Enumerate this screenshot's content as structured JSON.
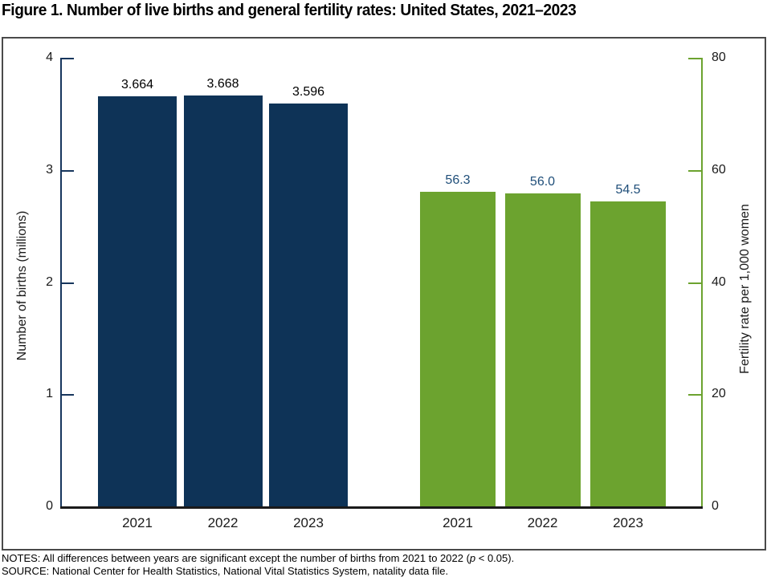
{
  "title": "Figure 1. Number of live births and general fertility rates: United States, 2021–2023",
  "notes": {
    "line1_prefix": "NOTES: All differences between years are significant except the number of births from 2021 to 2022 (",
    "line1_italic": "p",
    "line1_suffix": " < 0.05).",
    "line2": "SOURCE: National Center for Health Statistics, National Vital Statistics System, natality data file."
  },
  "colors": {
    "births_bar": "#0e3357",
    "births_axis": "#17365d",
    "births_value_label": "#000000",
    "fertility_bar": "#6ca32f",
    "fertility_axis": "#6ca32f",
    "fertility_value_label": "#1f4e79",
    "x_axis_line": "#1a1a1a",
    "tick_label": "#1a1a1a"
  },
  "chart_data": {
    "type": "bar",
    "title": "Figure 1. Number of live births and general fertility rates: United States, 2021–2023",
    "categories": [
      "2021",
      "2022",
      "2023"
    ],
    "series": [
      {
        "name": "Number of births (millions)",
        "axis": "left",
        "values": [
          3.664,
          3.668,
          3.596
        ],
        "labels": [
          "3.664",
          "3.668",
          "3.596"
        ]
      },
      {
        "name": "Fertility rate per 1,000 women",
        "axis": "right",
        "values": [
          56.3,
          56.0,
          54.5
        ],
        "labels": [
          "56.3",
          "56.0",
          "54.5"
        ]
      }
    ],
    "left_axis": {
      "label": "Number of births (millions)",
      "ticks": [
        0,
        1,
        2,
        3,
        4
      ],
      "range": [
        0,
        4
      ]
    },
    "right_axis": {
      "label": "Fertility rate per 1,000 women",
      "ticks": [
        0,
        20,
        40,
        60,
        80
      ],
      "range": [
        0,
        80
      ]
    },
    "grid": false,
    "legend": "none"
  }
}
